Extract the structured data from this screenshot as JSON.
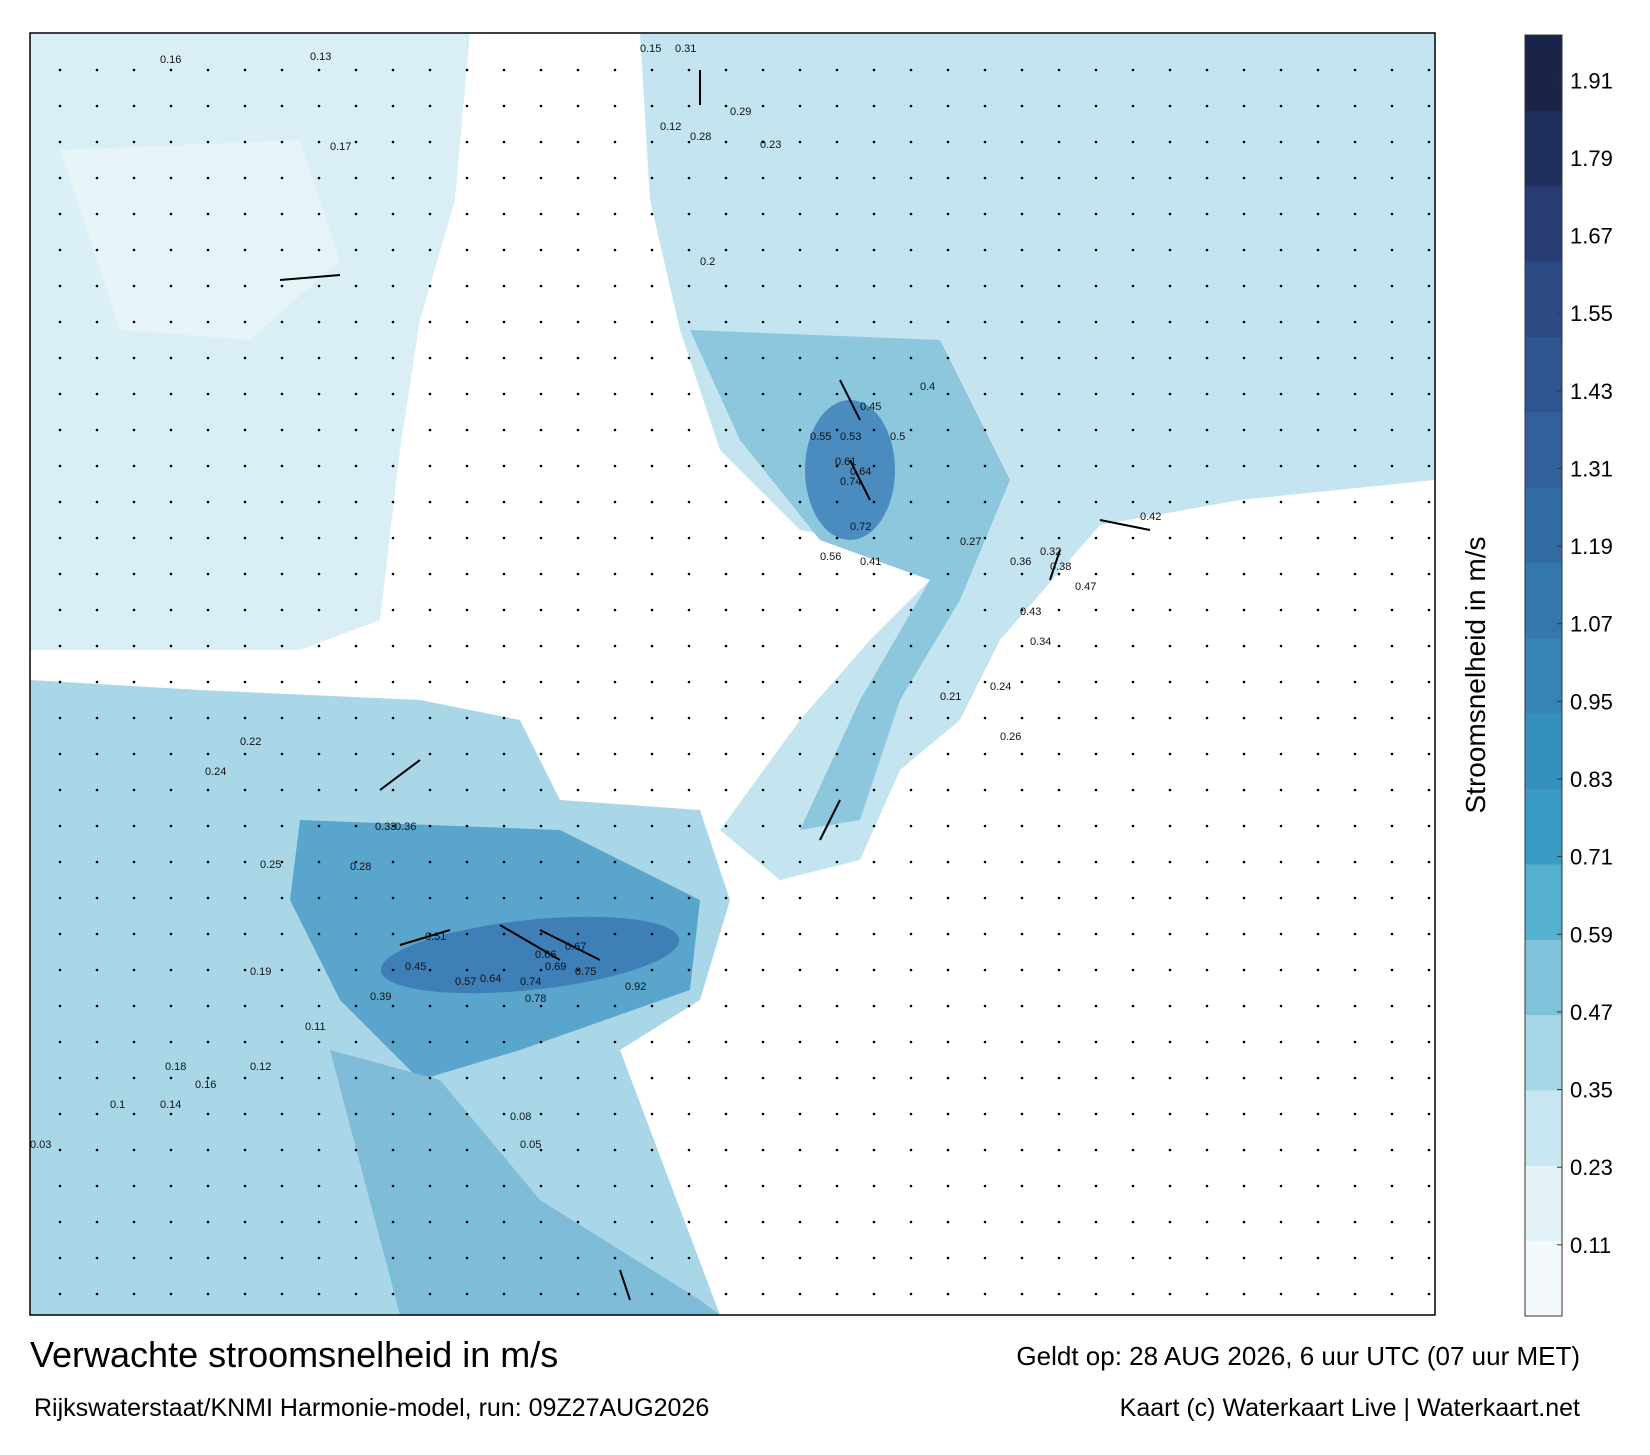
{
  "map": {
    "title": "Verwachte stroomsnelheid in m/s",
    "subtitle": "Rijkswaterstaat/KNMI Harmonie-model, run: 09Z27AUG2026",
    "valid_time": "Geldt op: 28 AUG 2026, 6 uur UTC (07 uur MET)",
    "credit": "Kaart (c) Waterkaart Live | Waterkaart.net",
    "speed_labels": [
      "0.31",
      "0.29",
      "0.28",
      "0.23",
      "0.2",
      "0.12",
      "0.17",
      "0.16",
      "0.15",
      "0.13",
      "0.5",
      "0.4",
      "0.45",
      "0.55",
      "0.53",
      "0.61",
      "0.64",
      "0.74",
      "0.72",
      "0.56",
      "0.41",
      "0.42",
      "0.36",
      "0.32",
      "0.27",
      "0.38",
      "0.47",
      "0.43",
      "0.34",
      "0.24",
      "0.26",
      "0.21",
      "0.67",
      "0.66",
      "0.69",
      "0.75",
      "0.92",
      "0.78",
      "0.74",
      "0.57",
      "0.64",
      "0.51",
      "0.45",
      "0.39",
      "0.33",
      "0.36",
      "0.28",
      "0.25",
      "0.24",
      "0.22",
      "0.18",
      "0.14",
      "0.1",
      "0.08",
      "0.05",
      "0.03",
      "0.16",
      "0.19",
      "0.12",
      "0.11"
    ]
  },
  "colorbar": {
    "label": "Stroomsnelheid in m/s",
    "lim": [
      0,
      1.98
    ],
    "ticks": [
      0.11,
      0.23,
      0.35,
      0.47,
      0.59,
      0.71,
      0.83,
      0.95,
      1.07,
      1.19,
      1.31,
      1.43,
      1.55,
      1.67,
      1.79,
      1.91
    ],
    "colors": [
      "#f4fafc",
      "#e3f2f7",
      "#c8e6f0",
      "#a6d6e6",
      "#7fc3db",
      "#55afcf",
      "#3a9cc4",
      "#3590bb",
      "#3584b3",
      "#3478ab",
      "#336ca3",
      "#31609a",
      "#2e5590",
      "#2c4a84",
      "#273c72",
      "#20305e",
      "#1a2448"
    ]
  }
}
